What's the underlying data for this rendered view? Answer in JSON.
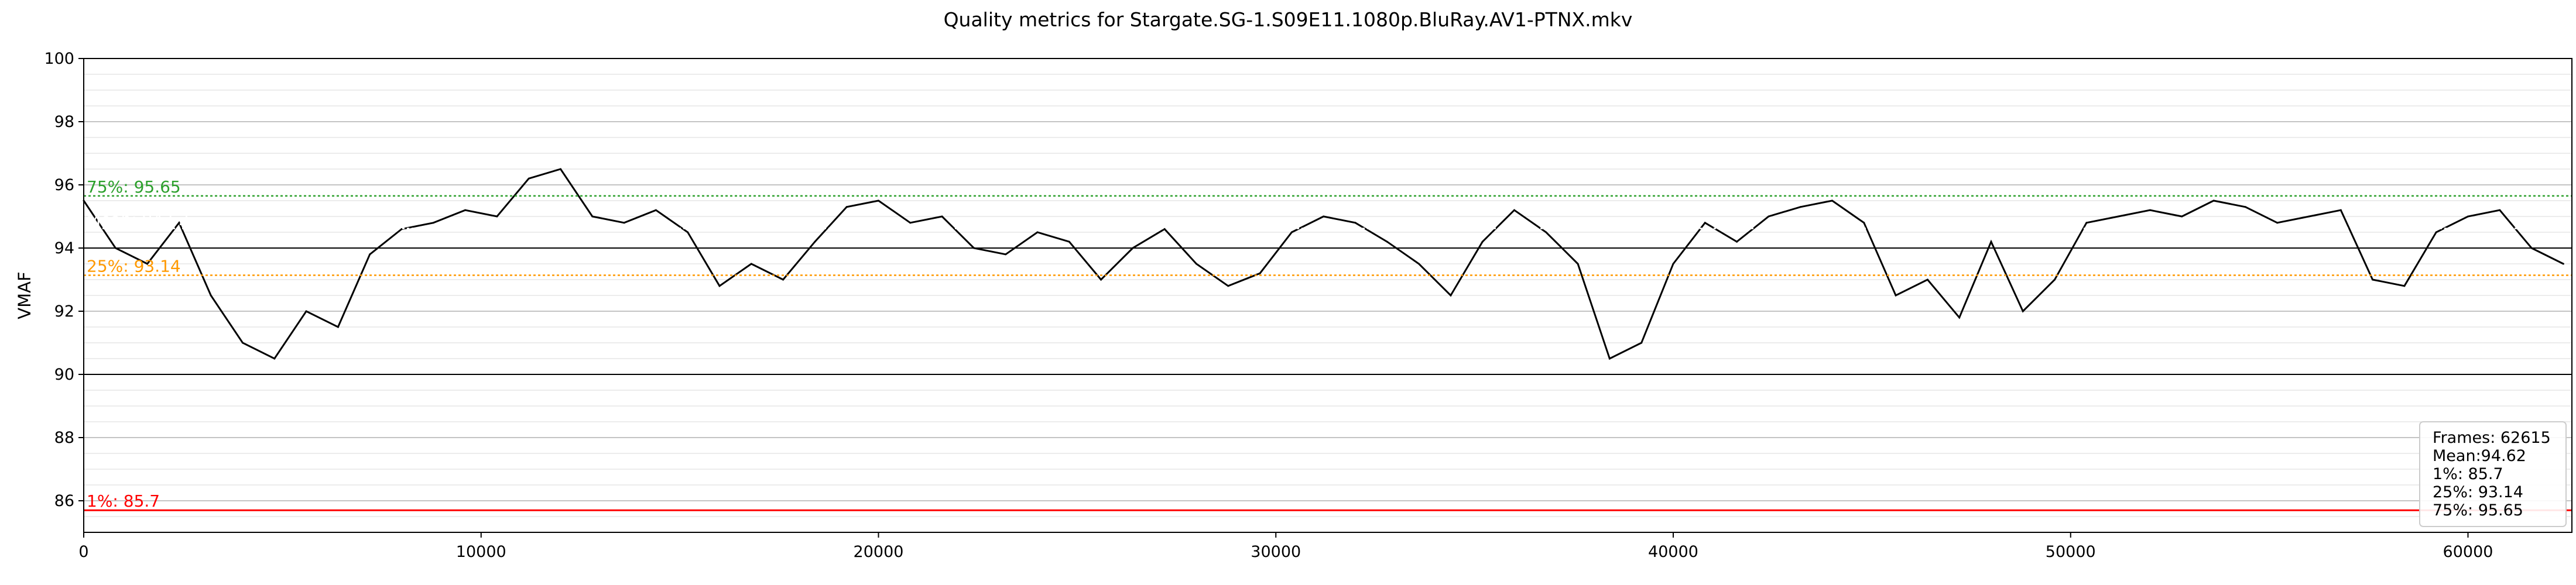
{
  "chart_data": {
    "type": "line",
    "title": "Quality metrics for Stargate.SG-1.S09E11.1080p.BluRay.AV1-PTNX.mkv",
    "xlabel": "",
    "ylabel": "VMAF",
    "xlim": [
      0,
      62615
    ],
    "ylim": [
      85,
      100
    ],
    "x_ticks": [
      0,
      10000,
      20000,
      30000,
      40000,
      50000,
      60000
    ],
    "y_ticks": [
      86,
      88,
      90,
      92,
      94,
      96,
      98,
      100
    ],
    "y_tick_labels": [
      "86",
      "88",
      "90",
      "92",
      "94",
      "96",
      "98",
      "100"
    ],
    "x_tick_labels": [
      "0",
      "10000",
      "20000",
      "30000",
      "40000",
      "50000",
      "60000"
    ],
    "grid": true,
    "series": [
      {
        "color": "#000000",
        "x": [
          0,
          800,
          1600,
          2400,
          3200,
          4000,
          4800,
          5600,
          6400,
          7200,
          8000,
          8800,
          9600,
          10400,
          11200,
          12000,
          12800,
          13600,
          14400,
          15200,
          16000,
          16800,
          17600,
          18400,
          19200,
          20000,
          20800,
          21600,
          22400,
          23200,
          24000,
          24800,
          25600,
          26400,
          27200,
          28000,
          28800,
          29600,
          30400,
          31200,
          32000,
          32800,
          33600,
          34400,
          35200,
          36000,
          36800,
          37600,
          38400,
          39200,
          40000,
          40800,
          41600,
          42400,
          43200,
          44000,
          44800,
          45600,
          46400,
          47200,
          48000,
          48800,
          49600,
          50400,
          51200,
          52000,
          52800,
          53600,
          54400,
          55200,
          56000,
          56800,
          57600,
          58400,
          59200,
          60000,
          60800,
          61600,
          62400
        ],
        "values": [
          95.5,
          94.0,
          93.5,
          94.8,
          92.5,
          91.0,
          90.5,
          92.0,
          91.5,
          93.8,
          94.6,
          94.8,
          95.2,
          95.0,
          96.2,
          96.5,
          95.0,
          94.8,
          95.2,
          94.5,
          92.8,
          93.5,
          93.0,
          94.2,
          95.3,
          95.5,
          94.8,
          95.0,
          94.0,
          93.8,
          94.5,
          94.2,
          93.0,
          94.0,
          94.6,
          93.5,
          92.8,
          93.2,
          94.5,
          95.0,
          94.8,
          94.2,
          93.5,
          92.5,
          94.2,
          95.2,
          94.5,
          93.5,
          90.5,
          91.0,
          93.5,
          94.8,
          94.2,
          95.0,
          95.3,
          95.5,
          94.8,
          92.5,
          93.0,
          91.8,
          94.2,
          92.0,
          93.0,
          94.8,
          95.0,
          95.2,
          95.0,
          95.5,
          95.3,
          94.8,
          95.0,
          95.2,
          93.0,
          92.8,
          94.5,
          95.0,
          95.2,
          94.0,
          93.5
        ]
      }
    ],
    "reference_lines": [
      {
        "label": "75%: 95.65",
        "value": 95.65,
        "color": "#2ca02c",
        "style": "dotted"
      },
      {
        "label": "Mean: 94.62",
        "value": 94.62,
        "color": "#ffffff",
        "style": "dotted"
      },
      {
        "label": "25%: 93.14",
        "value": 93.14,
        "color": "#ff9900",
        "style": "dotted"
      },
      {
        "label": "1%: 85.7",
        "value": 85.7,
        "color": "#ff0000",
        "style": "solid"
      }
    ],
    "legend": {
      "placement": "bottom-right",
      "lines": [
        "Frames: 62615",
        "Mean:94.62",
        "1%: 85.7",
        "25%: 93.14",
        "75%: 95.65"
      ]
    }
  }
}
